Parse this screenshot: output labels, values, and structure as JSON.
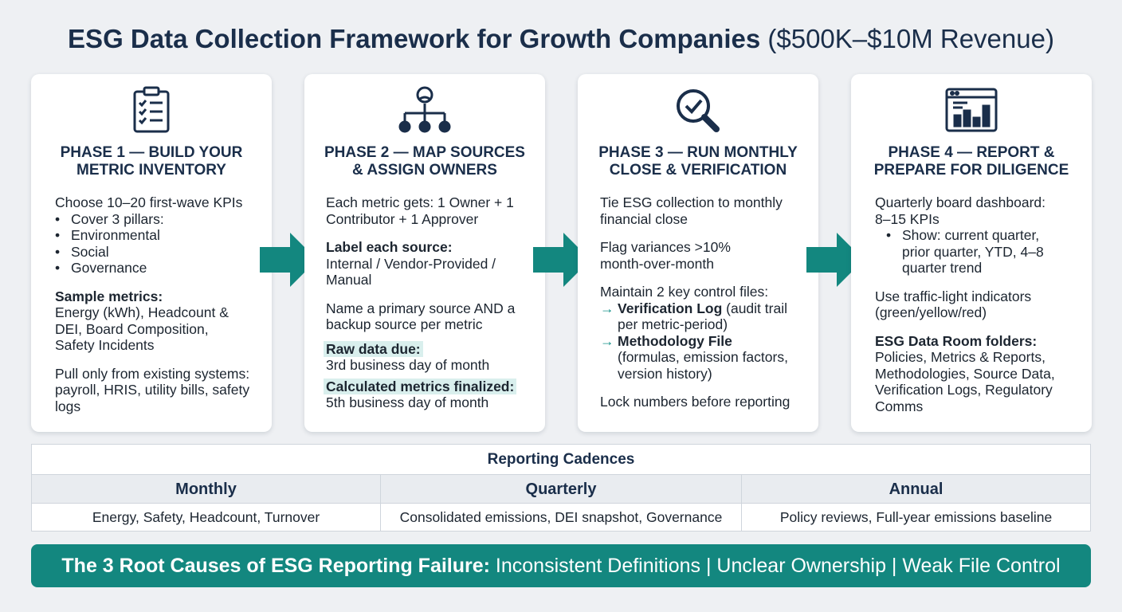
{
  "title": {
    "bold": "ESG Data Collection Framework for Growth Companies",
    "sub": "($500K–$10M Revenue)"
  },
  "icons": [
    "clipboard-checklist-icon",
    "org-chart-icon",
    "magnifier-check-icon",
    "dashboard-chart-icon"
  ],
  "accent_color": "#13877f",
  "phases": [
    {
      "title_line1": "PHASE 1 — BUILD YOUR",
      "title_line2": "METRIC INVENTORY",
      "intro": "Choose 10–20 first-wave KPIs",
      "bullets": [
        "Cover 3 pillars:",
        "Environmental",
        "Social",
        "Governance"
      ],
      "sample_label": "Sample metrics:",
      "sample_text": "Energy (kWh), Headcount & DEI, Board Composition, Safety Incidents",
      "pull_text": "Pull only from existing systems: payroll, HRIS, utility bills, safety logs"
    },
    {
      "title_line1": "PHASE 2 — MAP SOURCES",
      "title_line2": "& ASSIGN OWNERS",
      "owners_text": "Each metric gets: 1 Owner + 1 Contributor + 1 Approver",
      "label_head": "Label each source:",
      "label_text": "Internal / Vendor-Provided / Manual",
      "source_text": "Name a primary source AND a backup source per metric",
      "raw_label": "Raw data due:",
      "raw_text": "3rd business day of month",
      "calc_label": "Calculated metrics finalized:",
      "calc_text": "5th business day of month"
    },
    {
      "title_line1": "PHASE 3 — RUN MONTHLY",
      "title_line2": "CLOSE & VERIFICATION",
      "tie_text": "Tie ESG collection to monthly financial close",
      "flag_text": "Flag variances >10% month-over-month",
      "maintain_text": "Maintain 2 key control files:",
      "arrow_glyph": "→",
      "file1_label": "Verification Log",
      "file1_text": " (audit trail per metric-period)",
      "file2_label": "Methodology File",
      "file2_text": "(formulas, emission factors, version history)",
      "lock_text": "Lock numbers before reporting"
    },
    {
      "title_line1": "PHASE 4 — REPORT &",
      "title_line2": "PREPARE FOR DILIGENCE",
      "dash_text": "Quarterly board dashboard: 8–15 KPIs",
      "show_text": "Show: current quarter, prior quarter, YTD, 4–8 quarter trend",
      "traffic_text": "Use traffic-light indicators (green/yellow/red)",
      "room_label": "ESG Data Room folders:",
      "room_text": "Policies, Metrics & Reports, Methodologies, Source Data, Verification Logs, Regulatory Comms"
    }
  ],
  "cadence": {
    "caption": "Reporting Cadences",
    "headers": [
      "Monthly",
      "Quarterly",
      "Annual"
    ],
    "values": [
      "Energy, Safety, Headcount, Turnover",
      "Consolidated emissions, DEI snapshot, Governance",
      "Policy reviews, Full-year emissions baseline"
    ]
  },
  "banner": {
    "bold": "The 3 Root Causes of ESG Reporting Failure:",
    "causes": "Inconsistent Definitions | Unclear Ownership | Weak File Control"
  }
}
